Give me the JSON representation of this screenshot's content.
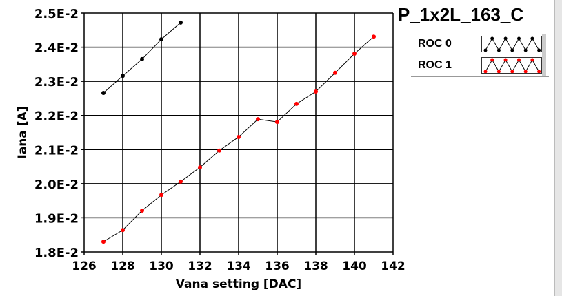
{
  "chart_data": {
    "type": "line",
    "title": "P_1x2L_163_C",
    "xlabel": "Vana setting [DAC]",
    "ylabel": "Iana [A]",
    "xlim": [
      126,
      142
    ],
    "ylim": [
      0.018,
      0.025
    ],
    "xticks": [
      126,
      128,
      130,
      132,
      134,
      136,
      138,
      140,
      142
    ],
    "yticks": [
      0.018,
      0.019,
      0.02,
      0.021,
      0.022,
      0.023,
      0.024,
      0.025
    ],
    "ytick_labels": [
      "1.8E-2",
      "1.9E-2",
      "2.0E-2",
      "2.1E-2",
      "2.2E-2",
      "2.3E-2",
      "2.4E-2",
      "2.5E-2"
    ],
    "grid": true,
    "legend_placement": "top-right",
    "series": [
      {
        "name": "ROC 0",
        "color": "#000000",
        "x": [
          127,
          128,
          129,
          130,
          131
        ],
        "y": [
          0.02266,
          0.02316,
          0.02365,
          0.02423,
          0.02472
        ]
      },
      {
        "name": "ROC 1",
        "color": "#ff0000",
        "x": [
          127,
          128,
          129,
          130,
          131,
          132,
          133,
          134,
          135,
          136,
          137,
          138,
          139,
          140,
          141
        ],
        "y": [
          0.0183,
          0.01864,
          0.01921,
          0.01967,
          0.02006,
          0.02048,
          0.02097,
          0.02137,
          0.02189,
          0.02181,
          0.02234,
          0.0227,
          0.02325,
          0.02381,
          0.02431
        ]
      }
    ]
  }
}
